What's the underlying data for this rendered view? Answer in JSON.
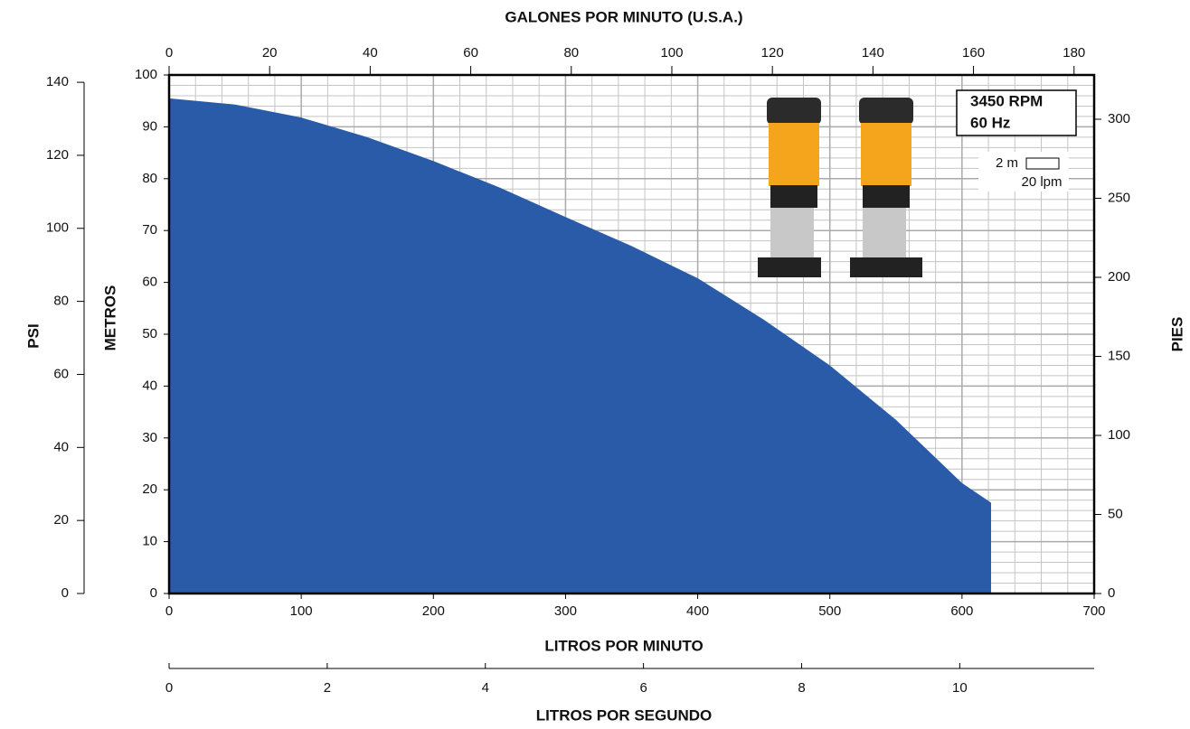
{
  "chart_data": {
    "type": "area",
    "color": "#2a5ba8",
    "x": [
      0,
      50,
      100,
      150,
      200,
      250,
      300,
      350,
      400,
      450,
      500,
      550,
      600,
      622
    ],
    "values": [
      95.5,
      94.3,
      91.8,
      88.0,
      83.4,
      78.3,
      72.6,
      67.0,
      60.8,
      52.8,
      44.0,
      33.5,
      21.3,
      17.5
    ],
    "xlabel": "LITROS POR MINUTO",
    "ylabel": "METROS",
    "xlim": [
      0,
      700
    ],
    "xticks": [
      0,
      100,
      200,
      300,
      400,
      500,
      600,
      700
    ],
    "ylim": [
      0,
      100
    ],
    "yticks": [
      0,
      10,
      20,
      30,
      40,
      50,
      60,
      70,
      80,
      90,
      100
    ],
    "grid": true,
    "minor_grid": {
      "x_step": 20,
      "y_step": 2
    },
    "top_axis": {
      "title": "GALONES POR MINUTO (U.S.A.)",
      "lim": [
        0,
        184
      ],
      "ticks": [
        0,
        20,
        40,
        60,
        80,
        100,
        120,
        140,
        160,
        180
      ]
    },
    "left_axis": {
      "title": "PSI",
      "lim": [
        0,
        142
      ],
      "ticks": [
        0,
        20,
        40,
        60,
        80,
        100,
        120,
        140
      ]
    },
    "right_axis": {
      "title": "PIES",
      "lim": [
        0,
        328
      ],
      "ticks": [
        0,
        50,
        100,
        150,
        200,
        250,
        300
      ]
    },
    "bottom_axis": {
      "title": "LITROS POR SEGUNDO",
      "lim": [
        0,
        11.7
      ],
      "ticks": [
        0,
        2,
        4,
        6,
        8,
        10
      ]
    },
    "info": {
      "speed": "3450 RPM",
      "frequency": "60 Hz",
      "scale_y": "2 m",
      "scale_x": "20 lpm"
    }
  }
}
